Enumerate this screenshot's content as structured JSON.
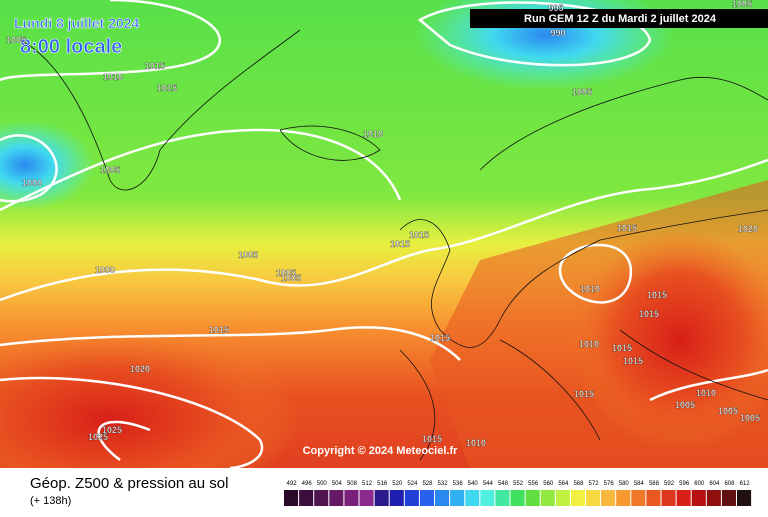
{
  "header": {
    "date": "Lundi 8 juillet 2024",
    "time": "8:00 locale",
    "run": "Run GEM 12 Z du Mardi 2 juillet 2024"
  },
  "copyright": "Copyright © 2024 Meteociel.fr",
  "footer": {
    "title": "Géop. Z500 & pression au sol",
    "lead": "(+ 138h)"
  },
  "isobar_labels": [
    "1005",
    "995",
    "990",
    "1005",
    "1015",
    "1010",
    "1015",
    "1005",
    "1010",
    "1000",
    "1005",
    "1015",
    "1020",
    "1015",
    "1015",
    "1005",
    "1000",
    "1005",
    "1005",
    "1010",
    "1015",
    "1015",
    "1015",
    "1015",
    "1010",
    "1015",
    "1015",
    "1020",
    "1015",
    "1010",
    "1005",
    "1005",
    "1005",
    "1025",
    "1025",
    "1015",
    "1010"
  ],
  "scale": {
    "labels": [
      "492",
      "496",
      "500",
      "504",
      "508",
      "512",
      "516",
      "520",
      "524",
      "528",
      "532",
      "536",
      "540",
      "544",
      "548",
      "552",
      "556",
      "560",
      "564",
      "568",
      "572",
      "576",
      "580",
      "584",
      "588",
      "592",
      "596",
      "600",
      "604",
      "608",
      "612"
    ],
    "colors": [
      "#2a0a2a",
      "#3c0e3c",
      "#501450",
      "#661a66",
      "#7a207a",
      "#8c2a8c",
      "#2a1a8c",
      "#2020b0",
      "#2040d8",
      "#2a60f0",
      "#2a88f0",
      "#30b0f0",
      "#40d8f0",
      "#50f0e0",
      "#40e8a0",
      "#40e060",
      "#60e040",
      "#90e840",
      "#c0f040",
      "#f0f040",
      "#f8d840",
      "#f8b840",
      "#f89830",
      "#f07828",
      "#e85820",
      "#e03820",
      "#d82018",
      "#b81010",
      "#901010",
      "#601010",
      "#201010"
    ]
  }
}
